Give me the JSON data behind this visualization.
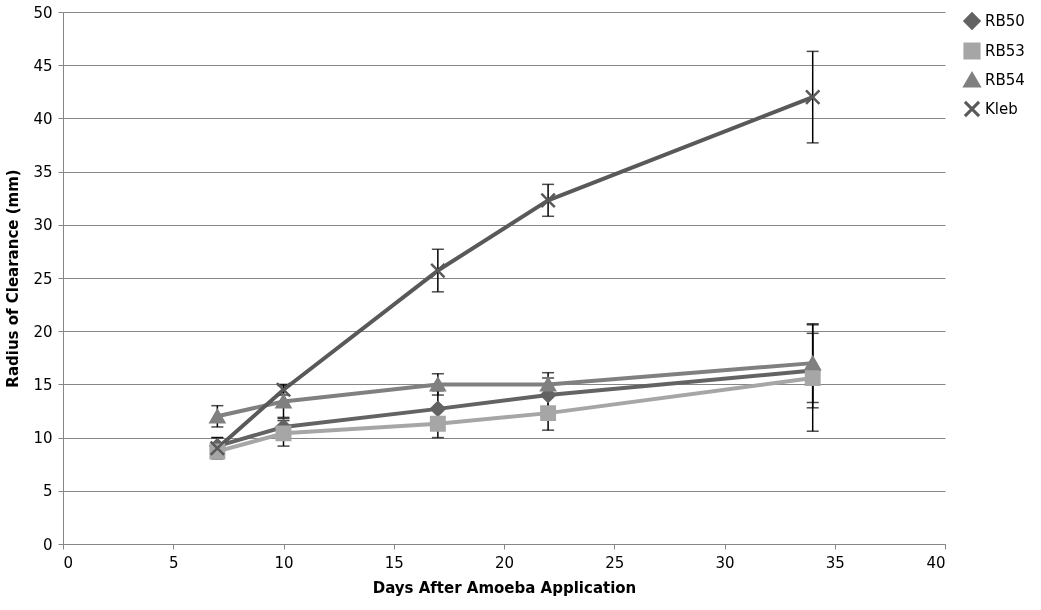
{
  "chart_data": {
    "type": "line",
    "xlabel": "Days After Amoeba Application",
    "ylabel": "Radius of Clearance (mm)",
    "x": [
      7,
      10,
      17,
      22,
      34
    ],
    "series": [
      {
        "name": "RB50",
        "color": "#636363",
        "marker": "diamond",
        "values": [
          9.2,
          11.0,
          12.7,
          14.0,
          16.3
        ],
        "errors": [
          0.8,
          0.8,
          1.7,
          1.6,
          3.5
        ]
      },
      {
        "name": "RB53",
        "color": "#a6a6a6",
        "marker": "square",
        "values": [
          8.7,
          10.4,
          11.3,
          12.3,
          15.6
        ],
        "errors": [
          0.5,
          1.2,
          1.3,
          1.6,
          5.0
        ]
      },
      {
        "name": "RB54",
        "color": "#808080",
        "marker": "triangle",
        "values": [
          12.0,
          13.4,
          15.0,
          15.0,
          17.0
        ],
        "errors": [
          1.0,
          1.5,
          1.0,
          1.1,
          3.7
        ]
      },
      {
        "name": "Kleb",
        "color": "#595959",
        "marker": "cross",
        "values": [
          9.0,
          14.5,
          25.7,
          32.3,
          42.0
        ],
        "errors": [
          1.0,
          0.5,
          2.0,
          1.5,
          4.3
        ]
      }
    ],
    "xlim": [
      0,
      40
    ],
    "xticks": [
      0,
      5,
      10,
      15,
      20,
      25,
      30,
      35,
      40
    ],
    "ylim": [
      0,
      50
    ],
    "yticks": [
      0,
      5,
      10,
      15,
      20,
      25,
      30,
      35,
      40,
      45,
      50
    ],
    "grid": "y",
    "legend": "right"
  }
}
